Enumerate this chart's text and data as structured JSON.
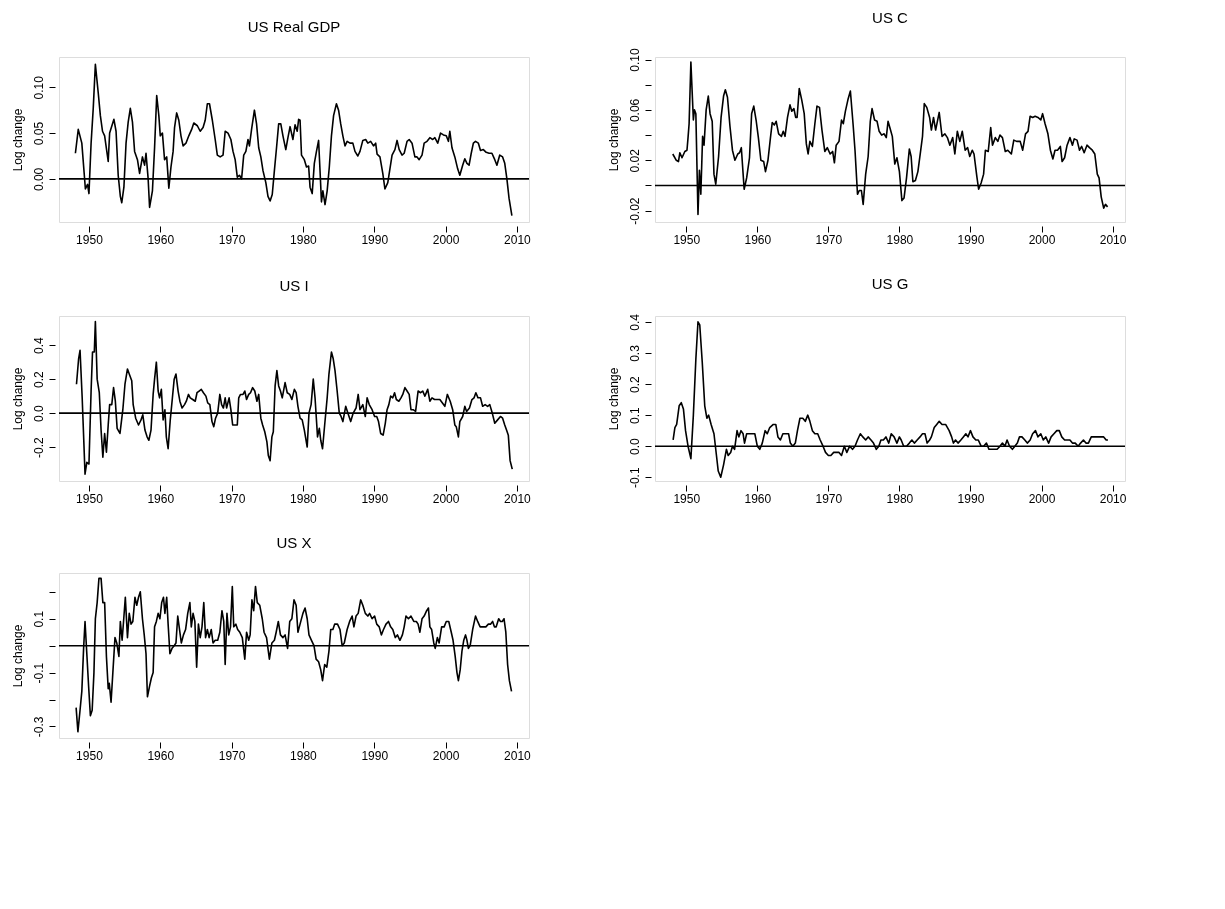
{
  "chart_data": [
    {
      "type": "line",
      "title": "US Real GDP",
      "ylabel": "Log change",
      "color": "#000000",
      "grid": false,
      "line_style": "solid",
      "xlim": [
        1945.8,
        2011.7
      ],
      "xticks": [
        1950,
        1960,
        1970,
        1980,
        1990,
        2000,
        2010
      ],
      "ylim": [
        -0.047,
        0.133
      ],
      "yticks": [
        {
          "value": 0,
          "label": "0.00"
        },
        {
          "value": 0.05,
          "label": "0.05"
        },
        {
          "value": 0.1,
          "label": "0.10"
        }
      ],
      "ref_lines": [
        {
          "axis": "y",
          "value": 0,
          "color": "#000000"
        }
      ],
      "x": [
        1948.1,
        1948.5,
        1949.0,
        1949.5,
        1949.8,
        1950.0,
        1950.3,
        1950.6,
        1950.9,
        1951.3,
        1951.6,
        1951.9,
        1952.2,
        1952.7,
        1952.9,
        1953.5,
        1953.8,
        1954.1,
        1954.4,
        1954.6,
        1954.9,
        1955.2,
        1955.5,
        1955.8,
        1956.1,
        1956.4,
        1956.8,
        1957.1,
        1957.5,
        1957.8,
        1958.0,
        1958.3,
        1958.5,
        1958.9,
        1959.2,
        1959.5,
        1959.8,
        1960.0,
        1960.3,
        1960.6,
        1960.9,
        1961.2,
        1961.5,
        1961.8,
        1962.0,
        1962.3,
        1962.6,
        1962.9,
        1963.2,
        1963.6,
        1964.0,
        1964.4,
        1964.7,
        1965.2,
        1965.6,
        1966.0,
        1966.3,
        1966.6,
        1966.9,
        1967.3,
        1967.7,
        1968.0,
        1968.4,
        1968.8,
        1969.1,
        1969.5,
        1969.9,
        1970.2,
        1970.5,
        1970.8,
        1971.1,
        1971.4,
        1971.7,
        1972.0,
        1972.3,
        1972.5,
        1972.8,
        1973.2,
        1973.5,
        1973.8,
        1974.1,
        1974.4,
        1974.8,
        1975.1,
        1975.4,
        1975.7,
        1976.0,
        1976.3,
        1976.6,
        1976.9,
        1977.2,
        1977.6,
        1977.9,
        1978.2,
        1978.6,
        1978.9,
        1979.2,
        1979.4,
        1979.6,
        1979.8,
        1980.2,
        1980.5,
        1980.8,
        1981.0,
        1981.3,
        1981.6,
        1981.9,
        1982.2,
        1982.4,
        1982.6,
        1982.8,
        1983.1,
        1983.4,
        1983.7,
        1984.0,
        1984.3,
        1984.7,
        1985.0,
        1985.3,
        1985.6,
        1985.9,
        1986.2,
        1986.6,
        1987.0,
        1987.3,
        1987.7,
        1988.0,
        1988.4,
        1988.8,
        1989.1,
        1989.5,
        1989.9,
        1990.2,
        1990.4,
        1990.8,
        1991.2,
        1991.5,
        1991.9,
        1992.2,
        1992.5,
        1992.9,
        1993.2,
        1993.5,
        1993.9,
        1994.2,
        1994.6,
        1994.9,
        1995.3,
        1995.7,
        1996.0,
        1996.3,
        1996.7,
        1997.0,
        1997.4,
        1997.8,
        1998.2,
        1998.5,
        1998.9,
        1999.3,
        1999.7,
        2000.1,
        2000.4,
        2000.6,
        2000.9,
        2001.3,
        2001.7,
        2002.0,
        2002.4,
        2002.7,
        2003.0,
        2003.3,
        2003.6,
        2003.9,
        2004.2,
        2004.6,
        2004.9,
        2005.3,
        2005.7,
        2006.1,
        2006.5,
        2006.9,
        2007.2,
        2007.6,
        2008.0,
        2008.3,
        2008.6,
        2008.9,
        2009.3
      ],
      "values": [
        0.028,
        0.054,
        0.039,
        -0.011,
        -0.006,
        -0.016,
        0.039,
        0.077,
        0.125,
        0.094,
        0.069,
        0.052,
        0.047,
        0.019,
        0.05,
        0.065,
        0.052,
        0.004,
        -0.019,
        -0.026,
        -0.009,
        0.039,
        0.062,
        0.077,
        0.062,
        0.03,
        0.021,
        0.006,
        0.024,
        0.015,
        0.028,
        0.0,
        -0.031,
        -0.013,
        0.034,
        0.091,
        0.069,
        0.047,
        0.05,
        0.021,
        0.024,
        -0.01,
        0.013,
        0.03,
        0.056,
        0.072,
        0.064,
        0.047,
        0.036,
        0.039,
        0.047,
        0.054,
        0.061,
        0.058,
        0.052,
        0.056,
        0.064,
        0.082,
        0.082,
        0.064,
        0.043,
        0.026,
        0.024,
        0.026,
        0.052,
        0.05,
        0.043,
        0.03,
        0.021,
        0.002,
        0.004,
        0.0,
        0.026,
        0.03,
        0.043,
        0.036,
        0.054,
        0.075,
        0.06,
        0.034,
        0.024,
        0.009,
        -0.004,
        -0.019,
        -0.024,
        -0.017,
        0.009,
        0.034,
        0.06,
        0.06,
        0.047,
        0.032,
        0.045,
        0.057,
        0.043,
        0.059,
        0.052,
        0.065,
        0.064,
        0.026,
        0.021,
        0.013,
        0.014,
        -0.009,
        -0.016,
        0.017,
        0.03,
        0.042,
        0.009,
        -0.025,
        -0.013,
        -0.028,
        -0.013,
        0.013,
        0.047,
        0.069,
        0.082,
        0.075,
        0.06,
        0.047,
        0.036,
        0.041,
        0.039,
        0.039,
        0.03,
        0.025,
        0.03,
        0.042,
        0.043,
        0.039,
        0.041,
        0.036,
        0.039,
        0.027,
        0.024,
        0.006,
        -0.011,
        -0.004,
        0.011,
        0.026,
        0.032,
        0.042,
        0.032,
        0.026,
        0.028,
        0.041,
        0.043,
        0.039,
        0.024,
        0.024,
        0.021,
        0.026,
        0.039,
        0.041,
        0.045,
        0.043,
        0.045,
        0.039,
        0.05,
        0.048,
        0.047,
        0.041,
        0.052,
        0.034,
        0.024,
        0.011,
        0.004,
        0.015,
        0.022,
        0.017,
        0.015,
        0.028,
        0.039,
        0.041,
        0.039,
        0.031,
        0.032,
        0.029,
        0.028,
        0.028,
        0.021,
        0.015,
        0.026,
        0.024,
        0.017,
        0.0,
        -0.021,
        -0.04
      ]
    },
    {
      "type": "line",
      "title": "US C",
      "ylabel": "Log change",
      "color": "#000000",
      "grid": false,
      "line_style": "solid",
      "xlim": [
        1945.6,
        2011.75
      ],
      "xticks": [
        1950,
        1960,
        1970,
        1980,
        1990,
        2000,
        2010
      ],
      "ylim": [
        -0.029,
        0.102
      ],
      "yticks": [
        {
          "value": -0.02,
          "label": "-0.02"
        },
        {
          "value": 0,
          "label": null
        },
        {
          "value": 0.02,
          "label": "0.02"
        },
        {
          "value": 0.04,
          "label": null
        },
        {
          "value": 0.06,
          "label": "0.06"
        },
        {
          "value": 0.08,
          "label": null
        },
        {
          "value": 0.1,
          "label": "0.10"
        }
      ],
      "ref_lines": [
        {
          "axis": "y",
          "value": 0,
          "color": "#000000"
        }
      ],
      "x": [
        1948.1,
        1948.6,
        1948.9,
        1949.1,
        1949.4,
        1949.8,
        1950.1,
        1950.25,
        1950.4,
        1950.65,
        1951.0,
        1951.15,
        1951.35,
        1951.65,
        1951.85,
        1952.05,
        1952.3,
        1952.5,
        1952.8,
        1953.1,
        1953.35,
        1953.65,
        1953.9,
        1954.15,
        1954.55,
        1954.9,
        1955.25,
        1955.5,
        1955.8,
        1956.15,
        1956.5,
        1956.85,
        1957.25,
        1957.5,
        1957.75,
        1958.15,
        1958.5,
        1958.9,
        1959.2,
        1959.5,
        1959.85,
        1960.15,
        1960.5,
        1960.9,
        1961.15,
        1961.5,
        1961.85,
        1962.1,
        1962.4,
        1962.65,
        1963.0,
        1963.4,
        1963.65,
        1963.9,
        1964.25,
        1964.6,
        1964.85,
        1965.15,
        1965.4,
        1965.6,
        1965.9,
        1966.25,
        1966.6,
        1966.9,
        1967.15,
        1967.4,
        1967.75,
        1968.1,
        1968.4,
        1968.75,
        1969.1,
        1969.5,
        1969.85,
        1970.25,
        1970.6,
        1970.85,
        1971.1,
        1971.5,
        1971.85,
        1972.1,
        1972.4,
        1972.75,
        1973.1,
        1973.5,
        1973.75,
        1974.1,
        1974.35,
        1974.65,
        1974.9,
        1975.25,
        1975.6,
        1975.9,
        1976.15,
        1976.5,
        1976.85,
        1977.15,
        1977.5,
        1977.85,
        1978.15,
        1978.4,
        1978.75,
        1979.0,
        1979.35,
        1979.65,
        1980.0,
        1980.35,
        1980.65,
        1981.0,
        1981.4,
        1981.65,
        1981.9,
        1982.25,
        1982.6,
        1983.0,
        1983.25,
        1983.5,
        1983.85,
        1984.25,
        1984.5,
        1984.8,
        1985.1,
        1985.6,
        1986.0,
        1986.4,
        1986.75,
        1987.1,
        1987.5,
        1987.8,
        1988.15,
        1988.5,
        1988.85,
        1989.25,
        1989.6,
        1989.9,
        1990.25,
        1990.5,
        1990.9,
        1991.15,
        1991.5,
        1991.85,
        1992.1,
        1992.5,
        1992.85,
        1993.1,
        1993.5,
        1993.85,
        1994.15,
        1994.5,
        1994.9,
        1995.25,
        1995.75,
        1996.1,
        1996.5,
        1997.0,
        1997.35,
        1997.75,
        1998.1,
        1998.4,
        1998.75,
        1999.1,
        1999.5,
        1999.9,
        2000.15,
        2000.5,
        2000.9,
        2001.25,
        2001.6,
        2001.9,
        2002.25,
        2002.65,
        2002.9,
        2003.25,
        2003.6,
        2004.0,
        2004.35,
        2004.6,
        2005.0,
        2005.35,
        2005.65,
        2006.0,
        2006.4,
        2006.75,
        2007.15,
        2007.5,
        2007.85,
        2008.1,
        2008.4,
        2008.75,
        2009.0,
        2009.3
      ],
      "values": [
        0.025,
        0.02,
        0.019,
        0.026,
        0.022,
        0.027,
        0.028,
        0.038,
        0.049,
        0.098,
        0.052,
        0.06,
        0.057,
        -0.023,
        0.012,
        -0.007,
        0.039,
        0.032,
        0.06,
        0.071,
        0.057,
        0.051,
        0.009,
        0.001,
        0.023,
        0.054,
        0.071,
        0.076,
        0.07,
        0.047,
        0.028,
        0.02,
        0.025,
        0.026,
        0.03,
        -0.003,
        0.006,
        0.022,
        0.057,
        0.063,
        0.051,
        0.038,
        0.02,
        0.019,
        0.011,
        0.02,
        0.038,
        0.05,
        0.048,
        0.051,
        0.041,
        0.039,
        0.043,
        0.039,
        0.054,
        0.064,
        0.059,
        0.061,
        0.054,
        0.054,
        0.077,
        0.068,
        0.057,
        0.033,
        0.025,
        0.035,
        0.031,
        0.049,
        0.063,
        0.062,
        0.044,
        0.027,
        0.03,
        0.025,
        0.027,
        0.018,
        0.032,
        0.035,
        0.052,
        0.049,
        0.059,
        0.068,
        0.075,
        0.047,
        0.028,
        -0.007,
        -0.004,
        -0.004,
        -0.015,
        0.009,
        0.023,
        0.051,
        0.061,
        0.052,
        0.051,
        0.043,
        0.04,
        0.041,
        0.038,
        0.051,
        0.044,
        0.039,
        0.017,
        0.022,
        0.011,
        -0.012,
        -0.01,
        0.006,
        0.029,
        0.023,
        0.003,
        0.004,
        0.011,
        0.028,
        0.039,
        0.065,
        0.062,
        0.054,
        0.044,
        0.054,
        0.044,
        0.058,
        0.039,
        0.041,
        0.038,
        0.032,
        0.038,
        0.025,
        0.043,
        0.035,
        0.043,
        0.028,
        0.03,
        0.023,
        0.028,
        0.025,
        0.007,
        -0.003,
        0.002,
        0.009,
        0.028,
        0.027,
        0.046,
        0.032,
        0.038,
        0.035,
        0.04,
        0.038,
        0.027,
        0.028,
        0.025,
        0.036,
        0.035,
        0.035,
        0.028,
        0.041,
        0.043,
        0.055,
        0.054,
        0.055,
        0.054,
        0.052,
        0.057,
        0.049,
        0.041,
        0.028,
        0.021,
        0.028,
        0.028,
        0.031,
        0.019,
        0.022,
        0.032,
        0.038,
        0.032,
        0.037,
        0.036,
        0.028,
        0.031,
        0.026,
        0.032,
        0.03,
        0.028,
        0.025,
        0.009,
        0.006,
        -0.009,
        -0.018,
        -0.015,
        -0.017
      ]
    },
    {
      "type": "line",
      "title": "US I",
      "ylabel": "Log change",
      "color": "#000000",
      "grid": false,
      "line_style": "solid",
      "xlim": [
        1945.8,
        2011.7
      ],
      "xticks": [
        1950,
        1960,
        1970,
        1980,
        1990,
        2000,
        2010
      ],
      "ylim": [
        -0.4,
        0.572
      ],
      "yticks": [
        {
          "value": -0.2,
          "label": "-0.2"
        },
        {
          "value": 0,
          "label": "0.0"
        },
        {
          "value": 0.2,
          "label": "0.2"
        },
        {
          "value": 0.4,
          "label": "0.4"
        }
      ],
      "ref_lines": [
        {
          "axis": "y",
          "value": 0,
          "color": "#000000"
        }
      ],
      "x": [
        1948.25,
        1948.55,
        1948.75,
        1949.05,
        1949.3,
        1949.45,
        1949.7,
        1950.0,
        1950.3,
        1950.5,
        1950.75,
        1950.9,
        1951.15,
        1951.45,
        1951.7,
        1951.95,
        1952.2,
        1952.45,
        1952.7,
        1952.9,
        1953.2,
        1953.45,
        1953.7,
        1953.95,
        1954.35,
        1954.75,
        1955.05,
        1955.4,
        1955.65,
        1956.0,
        1956.2,
        1956.55,
        1956.95,
        1957.3,
        1957.55,
        1957.85,
        1958.15,
        1958.4,
        1958.7,
        1959.0,
        1959.2,
        1959.45,
        1959.7,
        1959.9,
        1960.15,
        1960.4,
        1960.65,
        1960.85,
        1961.1,
        1961.4,
        1961.7,
        1961.95,
        1962.2,
        1962.5,
        1962.75,
        1963.05,
        1963.4,
        1963.65,
        1963.95,
        1964.2,
        1964.55,
        1964.9,
        1965.15,
        1965.45,
        1965.75,
        1966.05,
        1966.4,
        1966.65,
        1966.95,
        1967.25,
        1967.5,
        1967.75,
        1968.05,
        1968.35,
        1968.6,
        1968.85,
        1969.1,
        1969.3,
        1969.65,
        1969.9,
        1970.15,
        1970.45,
        1970.8,
        1971.0,
        1971.25,
        1971.6,
        1971.85,
        1972.1,
        1972.4,
        1972.65,
        1972.95,
        1973.25,
        1973.55,
        1973.8,
        1974.1,
        1974.35,
        1974.65,
        1974.95,
        1975.15,
        1975.4,
        1975.65,
        1975.85,
        1976.1,
        1976.35,
        1976.6,
        1976.85,
        1977.1,
        1977.5,
        1977.8,
        1978.15,
        1978.45,
        1978.8,
        1979.05,
        1979.3,
        1979.6,
        1979.9,
        1980.2,
        1980.6,
        1980.85,
        1981.15,
        1981.45,
        1981.7,
        1982.05,
        1982.3,
        1982.5,
        1982.75,
        1983.05,
        1983.4,
        1983.65,
        1984.0,
        1984.25,
        1984.5,
        1984.8,
        1985.1,
        1985.35,
        1985.6,
        1986.0,
        1986.3,
        1986.7,
        1987.05,
        1987.45,
        1987.75,
        1988.0,
        1988.4,
        1988.75,
        1989.0,
        1989.3,
        1989.7,
        1990.05,
        1990.35,
        1990.6,
        1990.9,
        1991.25,
        1991.55,
        1991.8,
        1992.05,
        1992.3,
        1992.6,
        1992.85,
        1993.1,
        1993.45,
        1993.75,
        1994.0,
        1994.3,
        1994.6,
        1994.9,
        1995.15,
        1995.45,
        1995.8,
        1996.15,
        1996.5,
        1996.8,
        1997.1,
        1997.5,
        1997.8,
        1998.1,
        1998.45,
        1998.85,
        1999.2,
        1999.9,
        2000.25,
        2000.65,
        2001.0,
        2001.3,
        2001.5,
        2001.8,
        2002.0,
        2002.4,
        2002.7,
        2002.95,
        2003.35,
        2003.7,
        2004.0,
        2004.25,
        2004.55,
        2004.9,
        2005.2,
        2005.55,
        2005.9,
        2006.2,
        2006.55,
        2006.9,
        2007.3,
        2007.7,
        2008.0,
        2008.3,
        2008.55,
        2008.8,
        2009.05,
        2009.35
      ],
      "values": [
        0.17,
        0.32,
        0.37,
        0.09,
        -0.19,
        -0.36,
        -0.29,
        -0.3,
        0.13,
        0.36,
        0.36,
        0.54,
        0.2,
        0.12,
        -0.1,
        -0.26,
        -0.12,
        -0.23,
        -0.07,
        0.05,
        0.05,
        0.15,
        0.07,
        -0.09,
        -0.12,
        0.02,
        0.17,
        0.26,
        0.23,
        0.19,
        0.05,
        -0.03,
        -0.07,
        -0.04,
        -0.01,
        -0.1,
        -0.14,
        -0.16,
        -0.1,
        0.11,
        0.2,
        0.3,
        0.13,
        0.09,
        0.14,
        -0.04,
        0.02,
        -0.14,
        -0.21,
        -0.04,
        0.09,
        0.2,
        0.23,
        0.13,
        0.07,
        0.03,
        0.05,
        0.07,
        0.11,
        0.09,
        0.08,
        0.07,
        0.12,
        0.13,
        0.14,
        0.12,
        0.1,
        0.06,
        0.05,
        -0.05,
        -0.08,
        -0.03,
        0.0,
        0.11,
        0.05,
        0.03,
        0.09,
        0.03,
        0.09,
        0.02,
        -0.07,
        -0.07,
        -0.07,
        0.09,
        0.11,
        0.11,
        0.13,
        0.08,
        0.11,
        0.12,
        0.15,
        0.13,
        0.07,
        0.11,
        -0.03,
        -0.07,
        -0.11,
        -0.17,
        -0.25,
        -0.28,
        -0.14,
        -0.11,
        0.16,
        0.25,
        0.16,
        0.13,
        0.09,
        0.18,
        0.12,
        0.11,
        0.08,
        0.14,
        0.12,
        0.04,
        -0.03,
        -0.04,
        -0.1,
        -0.2,
        0.0,
        0.05,
        0.2,
        0.09,
        -0.14,
        -0.09,
        -0.16,
        -0.21,
        -0.07,
        0.09,
        0.23,
        0.36,
        0.32,
        0.25,
        0.13,
        0.0,
        -0.02,
        -0.05,
        0.04,
        0.0,
        -0.05,
        0.0,
        0.03,
        0.11,
        0.02,
        0.05,
        -0.02,
        0.09,
        0.05,
        0.02,
        -0.02,
        -0.02,
        -0.05,
        -0.12,
        -0.13,
        -0.06,
        0.02,
        0.05,
        0.1,
        0.09,
        0.12,
        0.08,
        0.07,
        0.09,
        0.11,
        0.15,
        0.13,
        0.11,
        0.02,
        0.02,
        0.01,
        0.13,
        0.12,
        0.13,
        0.1,
        0.14,
        0.07,
        0.09,
        0.08,
        0.08,
        0.08,
        0.04,
        0.11,
        0.07,
        0.02,
        -0.07,
        -0.08,
        -0.14,
        -0.05,
        -0.02,
        0.04,
        0.01,
        0.03,
        0.08,
        0.09,
        0.12,
        0.09,
        0.09,
        0.04,
        0.05,
        0.04,
        0.05,
        0.0,
        -0.06,
        -0.04,
        -0.02,
        -0.03,
        -0.07,
        -0.1,
        -0.13,
        -0.28,
        -0.33
      ]
    },
    {
      "type": "line",
      "title": "US G",
      "ylabel": "Log change",
      "color": "#000000",
      "grid": false,
      "line_style": "solid",
      "xlim": [
        1945.6,
        2011.75
      ],
      "xticks": [
        1950,
        1960,
        1970,
        1980,
        1990,
        2000,
        2010
      ],
      "ylim": [
        -0.112,
        0.419
      ],
      "yticks": [
        {
          "value": -0.1,
          "label": "-0.1"
        },
        {
          "value": 0,
          "label": "0.0"
        },
        {
          "value": 0.1,
          "label": "0.1"
        },
        {
          "value": 0.2,
          "label": "0.2"
        },
        {
          "value": 0.3,
          "label": "0.3"
        },
        {
          "value": 0.4,
          "label": "0.4"
        }
      ],
      "ref_lines": [
        {
          "axis": "y",
          "value": 0,
          "color": "#000000"
        }
      ],
      "x": [
        1948.15,
        1948.4,
        1948.65,
        1949.0,
        1949.3,
        1949.6,
        1949.9,
        1950.25,
        1950.65,
        1951.0,
        1951.35,
        1951.65,
        1951.9,
        1952.25,
        1952.6,
        1952.9,
        1953.15,
        1953.5,
        1953.9,
        1954.25,
        1954.5,
        1954.85,
        1955.25,
        1955.65,
        1955.9,
        1956.25,
        1956.5,
        1956.8,
        1957.15,
        1957.4,
        1957.7,
        1958.0,
        1958.2,
        1958.5,
        1958.9,
        1959.3,
        1959.65,
        1960.0,
        1960.35,
        1960.7,
        1961.1,
        1961.4,
        1961.75,
        1962.25,
        1962.6,
        1962.9,
        1963.25,
        1963.6,
        1964.0,
        1964.4,
        1964.65,
        1965.0,
        1965.35,
        1965.65,
        1966.0,
        1966.4,
        1966.75,
        1967.1,
        1967.4,
        1967.75,
        1968.1,
        1968.5,
        1968.85,
        1969.25,
        1969.6,
        1970.0,
        1970.35,
        1970.75,
        1971.1,
        1971.5,
        1971.85,
        1972.25,
        1972.6,
        1973.0,
        1973.4,
        1973.75,
        1974.1,
        1974.5,
        1974.85,
        1975.25,
        1975.6,
        1976.0,
        1976.35,
        1976.75,
        1977.1,
        1977.4,
        1977.75,
        1978.1,
        1978.5,
        1978.85,
        1979.25,
        1979.65,
        1980.0,
        1980.25,
        1980.6,
        1981.0,
        1981.4,
        1981.75,
        1982.1,
        1982.5,
        1982.9,
        1983.25,
        1983.6,
        1983.9,
        1984.25,
        1984.5,
        1984.9,
        1985.25,
        1985.6,
        1986.0,
        1986.5,
        1987.0,
        1987.35,
        1987.6,
        1987.9,
        1988.25,
        1988.65,
        1989.0,
        1989.35,
        1989.65,
        1990.0,
        1990.35,
        1990.75,
        1991.1,
        1991.5,
        1991.85,
        1992.25,
        1992.6,
        1993.0,
        1993.35,
        1993.75,
        1994.15,
        1994.5,
        1994.85,
        1995.15,
        1995.5,
        1995.9,
        1996.25,
        1996.6,
        1996.9,
        1997.25,
        1997.65,
        1998.0,
        1998.4,
        1998.75,
        1999.15,
        1999.5,
        1999.9,
        2000.25,
        2000.6,
        2001.0,
        2001.35,
        2001.75,
        2002.15,
        2002.5,
        2002.85,
        2003.25,
        2003.6,
        2004.0,
        2004.35,
        2004.75,
        2005.15,
        2005.5,
        2005.9,
        2006.25,
        2006.6,
        2007.0,
        2007.4,
        2007.9,
        2008.25,
        2008.75,
        2009.1,
        2009.35
      ],
      "values": [
        0.02,
        0.06,
        0.07,
        0.13,
        0.14,
        0.12,
        0.05,
        0.0,
        -0.04,
        0.1,
        0.28,
        0.4,
        0.39,
        0.27,
        0.13,
        0.09,
        0.1,
        0.07,
        0.04,
        -0.03,
        -0.08,
        -0.1,
        -0.06,
        -0.01,
        -0.03,
        -0.02,
        0.0,
        -0.01,
        0.05,
        0.03,
        0.05,
        0.04,
        0.01,
        0.04,
        0.04,
        0.04,
        0.04,
        0.0,
        -0.01,
        0.01,
        0.05,
        0.04,
        0.06,
        0.07,
        0.07,
        0.03,
        0.02,
        0.04,
        0.04,
        0.04,
        0.01,
        0.0,
        0.01,
        0.05,
        0.09,
        0.09,
        0.08,
        0.1,
        0.08,
        0.05,
        0.04,
        0.04,
        0.02,
        0.0,
        -0.02,
        -0.03,
        -0.03,
        -0.02,
        -0.02,
        -0.02,
        -0.03,
        0.0,
        -0.02,
        0.0,
        -0.01,
        0.0,
        0.02,
        0.04,
        0.03,
        0.02,
        0.03,
        0.02,
        0.01,
        -0.01,
        0.0,
        0.02,
        0.02,
        0.03,
        0.01,
        0.04,
        0.03,
        0.01,
        0.03,
        0.02,
        0.0,
        0.0,
        0.01,
        0.02,
        0.01,
        0.02,
        0.03,
        0.04,
        0.04,
        0.01,
        0.02,
        0.03,
        0.06,
        0.07,
        0.08,
        0.07,
        0.07,
        0.05,
        0.03,
        0.01,
        0.02,
        0.01,
        0.02,
        0.03,
        0.04,
        0.03,
        0.05,
        0.03,
        0.02,
        0.02,
        0.0,
        0.0,
        0.01,
        -0.01,
        -0.01,
        -0.01,
        -0.01,
        0.0,
        0.01,
        0.0,
        0.02,
        0.0,
        -0.01,
        0.0,
        0.01,
        0.03,
        0.03,
        0.02,
        0.01,
        0.02,
        0.04,
        0.05,
        0.03,
        0.04,
        0.02,
        0.03,
        0.01,
        0.03,
        0.04,
        0.05,
        0.05,
        0.03,
        0.02,
        0.02,
        0.02,
        0.01,
        0.01,
        0.0,
        0.01,
        0.02,
        0.01,
        0.01,
        0.03,
        0.03,
        0.03,
        0.03,
        0.03,
        0.02,
        0.02
      ]
    },
    {
      "type": "line",
      "title": "US X",
      "ylabel": "Log change",
      "color": "#000000",
      "grid": false,
      "line_style": "solid",
      "xlim": [
        1945.8,
        2011.7
      ],
      "xticks": [
        1950,
        1960,
        1970,
        1980,
        1990,
        2000,
        2010
      ],
      "ylim": [
        -0.343,
        0.27
      ],
      "yticks": [
        {
          "value": -0.3,
          "label": "-0.3"
        },
        {
          "value": -0.2,
          "label": null
        },
        {
          "value": -0.1,
          "label": "-0.1"
        },
        {
          "value": 0,
          "label": null
        },
        {
          "value": 0.1,
          "label": "0.1"
        },
        {
          "value": 0.2,
          "label": null
        }
      ],
      "ref_lines": [
        {
          "axis": "y",
          "value": 0,
          "color": "#000000"
        }
      ],
      "x": [
        1948.2,
        1948.45,
        1948.75,
        1949.0,
        1949.25,
        1949.45,
        1949.7,
        1949.95,
        1950.2,
        1950.45,
        1950.7,
        1950.9,
        1951.15,
        1951.4,
        1951.7,
        1951.95,
        1952.2,
        1952.45,
        1952.7,
        1952.85,
        1953.1,
        1953.35,
        1953.65,
        1953.9,
        1954.2,
        1954.4,
        1954.65,
        1954.85,
        1955.1,
        1955.4,
        1955.65,
        1955.9,
        1956.15,
        1956.45,
        1956.7,
        1956.95,
        1957.2,
        1957.5,
        1957.75,
        1958.0,
        1958.2,
        1958.5,
        1958.75,
        1959.0,
        1959.2,
        1959.45,
        1959.7,
        1959.95,
        1960.2,
        1960.45,
        1960.65,
        1960.9,
        1961.1,
        1961.35,
        1961.65,
        1961.95,
        1962.2,
        1962.45,
        1962.65,
        1962.95,
        1963.25,
        1963.55,
        1963.85,
        1964.15,
        1964.35,
        1964.6,
        1964.85,
        1965.1,
        1965.35,
        1965.6,
        1965.85,
        1966.1,
        1966.35,
        1966.6,
        1966.85,
        1967.15,
        1967.4,
        1967.7,
        1968.05,
        1968.35,
        1968.65,
        1968.9,
        1969.1,
        1969.35,
        1969.6,
        1969.85,
        1970.1,
        1970.3,
        1970.6,
        1970.85,
        1971.15,
        1971.5,
        1971.85,
        1972.1,
        1972.4,
        1972.6,
        1972.85,
        1973.1,
        1973.35,
        1973.6,
        1973.95,
        1974.3,
        1974.55,
        1974.9,
        1975.3,
        1975.65,
        1976.0,
        1976.25,
        1976.55,
        1976.85,
        1977.2,
        1977.5,
        1977.85,
        1978.15,
        1978.45,
        1978.75,
        1979.05,
        1979.3,
        1979.6,
        1980.0,
        1980.3,
        1980.6,
        1980.85,
        1981.2,
        1981.55,
        1981.85,
        1982.2,
        1982.5,
        1982.75,
        1983.05,
        1983.35,
        1983.65,
        1983.9,
        1984.2,
        1984.45,
        1984.85,
        1985.2,
        1985.5,
        1985.8,
        1986.2,
        1986.55,
        1986.9,
        1987.15,
        1987.45,
        1987.75,
        1988.1,
        1988.4,
        1988.75,
        1989.1,
        1989.35,
        1989.7,
        1990.05,
        1990.35,
        1990.7,
        1991.0,
        1991.3,
        1991.65,
        1992.0,
        1992.3,
        1992.6,
        1992.95,
        1993.25,
        1993.6,
        1993.95,
        1994.2,
        1994.45,
        1994.8,
        1995.15,
        1995.55,
        1995.9,
        1996.15,
        1996.4,
        1996.7,
        1997.0,
        1997.35,
        1997.6,
        1997.8,
        1998.05,
        1998.35,
        1998.55,
        1998.85,
        1999.1,
        1999.45,
        1999.8,
        2000.1,
        2000.45,
        2000.8,
        2001.05,
        2001.35,
        2001.6,
        2001.8,
        2002.05,
        2002.3,
        2002.55,
        2002.8,
        2003.0,
        2003.2,
        2003.45,
        2003.8,
        2004.2,
        2004.5,
        2004.85,
        2005.25,
        2005.65,
        2006.0,
        2006.3,
        2006.6,
        2006.85,
        2007.1,
        2007.45,
        2007.7,
        2007.95,
        2008.2,
        2008.45,
        2008.7,
        2008.95,
        2009.25
      ],
      "values": [
        -0.23,
        -0.32,
        -0.24,
        -0.17,
        -0.01,
        0.09,
        -0.03,
        -0.15,
        -0.26,
        -0.24,
        -0.1,
        0.1,
        0.16,
        0.25,
        0.25,
        0.16,
        0.16,
        -0.04,
        -0.16,
        -0.14,
        -0.21,
        -0.1,
        0.03,
        0.01,
        -0.04,
        0.09,
        0.02,
        0.09,
        0.18,
        0.03,
        0.12,
        0.08,
        0.09,
        0.18,
        0.15,
        0.18,
        0.2,
        0.1,
        0.04,
        -0.03,
        -0.19,
        -0.15,
        -0.12,
        -0.1,
        0.07,
        0.09,
        0.12,
        0.1,
        0.16,
        0.18,
        0.12,
        0.18,
        0.08,
        -0.03,
        -0.01,
        0.0,
        0.01,
        0.11,
        0.07,
        0.01,
        0.04,
        0.06,
        0.12,
        0.16,
        0.07,
        0.12,
        0.09,
        -0.08,
        0.08,
        0.03,
        0.07,
        0.16,
        0.03,
        0.06,
        0.03,
        0.06,
        0.01,
        0.02,
        0.02,
        0.05,
        0.13,
        0.09,
        -0.07,
        0.12,
        0.04,
        0.07,
        0.22,
        0.07,
        0.08,
        0.06,
        0.05,
        0.03,
        -0.05,
        0.05,
        0.02,
        0.04,
        0.17,
        0.13,
        0.22,
        0.16,
        0.15,
        0.1,
        0.05,
        0.03,
        -0.05,
        0.01,
        0.02,
        0.05,
        0.09,
        0.04,
        0.03,
        0.04,
        -0.01,
        0.09,
        0.1,
        0.17,
        0.15,
        0.05,
        0.08,
        0.12,
        0.14,
        0.1,
        0.04,
        0.02,
        0.0,
        -0.05,
        -0.06,
        -0.09,
        -0.13,
        -0.07,
        -0.08,
        -0.02,
        0.06,
        0.06,
        0.08,
        0.08,
        0.06,
        0.0,
        0.01,
        0.06,
        0.09,
        0.11,
        0.07,
        0.11,
        0.12,
        0.17,
        0.15,
        0.12,
        0.11,
        0.12,
        0.1,
        0.11,
        0.08,
        0.07,
        0.04,
        0.06,
        0.08,
        0.09,
        0.07,
        0.06,
        0.03,
        0.04,
        0.02,
        0.04,
        0.07,
        0.11,
        0.1,
        0.11,
        0.09,
        0.09,
        0.08,
        0.05,
        0.1,
        0.11,
        0.13,
        0.14,
        0.07,
        0.06,
        0.01,
        -0.01,
        0.03,
        0.01,
        0.07,
        0.07,
        0.09,
        0.09,
        0.05,
        0.02,
        -0.04,
        -0.1,
        -0.13,
        -0.09,
        -0.02,
        0.02,
        0.04,
        0.02,
        -0.01,
        0.0,
        0.06,
        0.11,
        0.09,
        0.07,
        0.07,
        0.07,
        0.08,
        0.08,
        0.09,
        0.07,
        0.07,
        0.1,
        0.09,
        0.09,
        0.1,
        0.05,
        -0.07,
        -0.13,
        -0.17
      ]
    }
  ]
}
